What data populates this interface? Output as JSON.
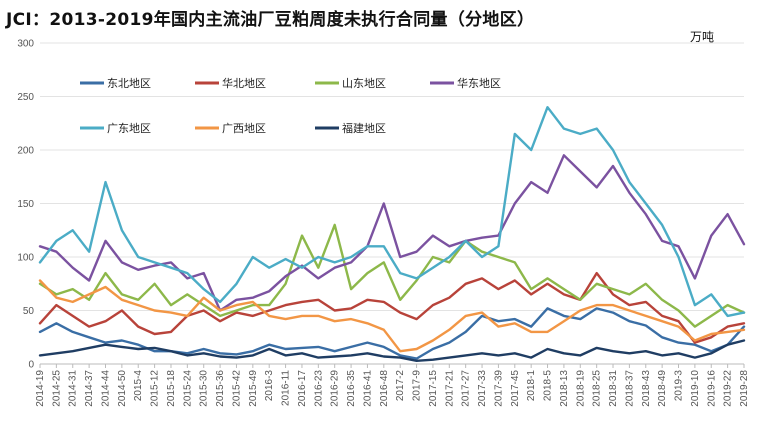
{
  "title": "JCI：2013-2019年国内主流油厂豆粕周度未执行合同量（分地区）",
  "unit": "万吨",
  "chart_data": {
    "type": "line",
    "ylim": [
      0,
      300
    ],
    "yticks": [
      0,
      50,
      100,
      150,
      200,
      250,
      300
    ],
    "grid": true,
    "legend_position": "top-left",
    "x": [
      "2014-19",
      "2014-25",
      "2014-31",
      "2014-37",
      "2014-44",
      "2014-50",
      "2015-4",
      "2015-12",
      "2015-18",
      "2015-24",
      "2015-30",
      "2015-36",
      "2015-42",
      "2015-49",
      "2016-3",
      "2016-11",
      "2016-17",
      "2016-23",
      "2016-29",
      "2016-35",
      "2016-41",
      "2016-48",
      "2017-2",
      "2017-9",
      "2017-15",
      "2017-21",
      "2017-27",
      "2017-33",
      "2017-39",
      "2017-45",
      "2018-1",
      "2018-5",
      "2018-13",
      "2018-19",
      "2018-25",
      "2018-31",
      "2018-37",
      "2018-43",
      "2018-49",
      "2019-3",
      "2019-10",
      "2019-16",
      "2019-22",
      "2019-28"
    ],
    "series": [
      {
        "name": "东北地区",
        "color": "#3A6EA5",
        "values": [
          30,
          38,
          30,
          25,
          20,
          22,
          18,
          12,
          12,
          10,
          14,
          10,
          9,
          12,
          18,
          14,
          15,
          16,
          12,
          16,
          20,
          16,
          8,
          5,
          14,
          20,
          30,
          45,
          40,
          42,
          35,
          52,
          45,
          42,
          52,
          48,
          40,
          36,
          25,
          20,
          18,
          12,
          18,
          35
        ]
      },
      {
        "name": "华北地区",
        "color": "#B8433A",
        "values": [
          38,
          55,
          45,
          35,
          40,
          50,
          35,
          28,
          30,
          45,
          50,
          40,
          48,
          45,
          50,
          55,
          58,
          60,
          50,
          52,
          60,
          58,
          48,
          42,
          55,
          62,
          75,
          80,
          70,
          78,
          65,
          75,
          65,
          60,
          85,
          65,
          55,
          58,
          45,
          40,
          20,
          25,
          35,
          38
        ]
      },
      {
        "name": "山东地区",
        "color": "#8DB84A",
        "values": [
          75,
          65,
          70,
          60,
          85,
          65,
          60,
          75,
          55,
          65,
          55,
          45,
          50,
          55,
          55,
          75,
          120,
          90,
          130,
          70,
          85,
          95,
          60,
          78,
          100,
          95,
          115,
          105,
          100,
          95,
          70,
          80,
          70,
          60,
          75,
          70,
          65,
          75,
          60,
          50,
          35,
          45,
          55,
          48
        ]
      },
      {
        "name": "华东地区",
        "color": "#7B52A0",
        "values": [
          110,
          105,
          90,
          78,
          115,
          95,
          88,
          92,
          95,
          80,
          85,
          50,
          60,
          62,
          68,
          82,
          92,
          80,
          90,
          95,
          110,
          150,
          100,
          105,
          120,
          110,
          115,
          118,
          120,
          150,
          170,
          160,
          195,
          180,
          165,
          185,
          160,
          140,
          115,
          110,
          80,
          120,
          140,
          112
        ]
      },
      {
        "name": "广东地区",
        "color": "#4BACC6",
        "values": [
          95,
          115,
          125,
          105,
          170,
          125,
          100,
          95,
          90,
          85,
          70,
          58,
          75,
          100,
          90,
          98,
          90,
          100,
          95,
          100,
          110,
          110,
          85,
          80,
          90,
          100,
          115,
          100,
          110,
          215,
          200,
          240,
          220,
          215,
          220,
          200,
          170,
          150,
          130,
          100,
          55,
          65,
          45,
          48
        ]
      },
      {
        "name": "广西地区",
        "color": "#F29645",
        "values": [
          78,
          62,
          58,
          65,
          72,
          60,
          55,
          50,
          48,
          45,
          62,
          50,
          55,
          58,
          45,
          42,
          45,
          45,
          40,
          42,
          38,
          32,
          12,
          14,
          22,
          32,
          45,
          48,
          35,
          38,
          30,
          30,
          40,
          50,
          55,
          55,
          50,
          45,
          40,
          35,
          22,
          28,
          30,
          32
        ]
      },
      {
        "name": "福建地区",
        "color": "#1F3D63",
        "values": [
          8,
          10,
          12,
          15,
          18,
          16,
          14,
          15,
          12,
          8,
          10,
          7,
          6,
          8,
          14,
          8,
          10,
          6,
          7,
          8,
          10,
          7,
          6,
          3,
          4,
          6,
          8,
          10,
          8,
          10,
          6,
          14,
          10,
          8,
          15,
          12,
          10,
          12,
          8,
          10,
          6,
          10,
          18,
          22
        ]
      }
    ]
  }
}
